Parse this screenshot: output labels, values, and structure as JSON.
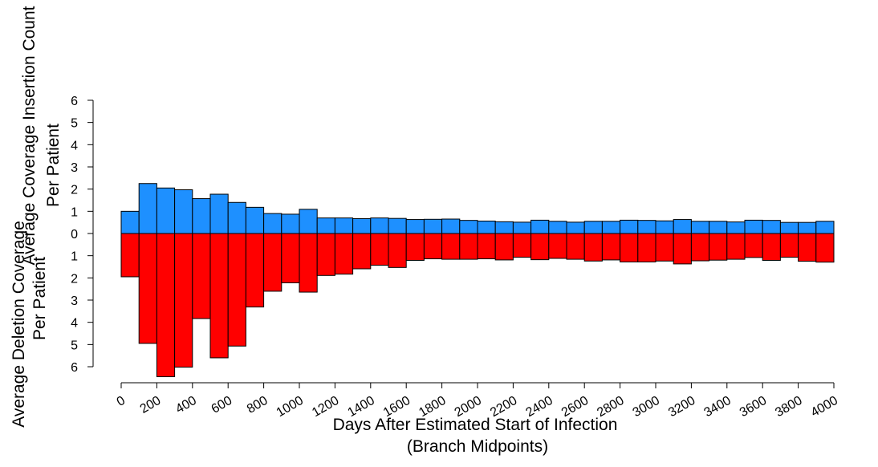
{
  "chart_data": {
    "type": "bar",
    "subtype": "mirrored-histogram",
    "x_bins": {
      "start": 0,
      "width": 100,
      "count": 40
    },
    "series": [
      {
        "name": "Insertion",
        "direction": "up",
        "color": "#1e90ff",
        "values": [
          1.0,
          2.25,
          2.05,
          1.97,
          1.57,
          1.77,
          1.4,
          1.18,
          0.9,
          0.87,
          1.09,
          0.7,
          0.7,
          0.67,
          0.7,
          0.68,
          0.63,
          0.64,
          0.65,
          0.59,
          0.56,
          0.53,
          0.51,
          0.6,
          0.55,
          0.51,
          0.55,
          0.55,
          0.6,
          0.59,
          0.57,
          0.63,
          0.55,
          0.55,
          0.52,
          0.6,
          0.59,
          0.5,
          0.5,
          0.55
        ]
      },
      {
        "name": "Deletion",
        "direction": "down",
        "color": "#ff0000",
        "values": [
          1.95,
          4.95,
          6.45,
          6.02,
          3.83,
          5.6,
          5.07,
          3.31,
          2.6,
          2.22,
          2.64,
          1.89,
          1.83,
          1.59,
          1.43,
          1.53,
          1.21,
          1.14,
          1.16,
          1.16,
          1.14,
          1.19,
          1.07,
          1.18,
          1.12,
          1.16,
          1.24,
          1.19,
          1.28,
          1.28,
          1.24,
          1.37,
          1.23,
          1.2,
          1.16,
          1.08,
          1.21,
          1.07,
          1.25,
          1.29
        ]
      }
    ],
    "x_ticks": [
      "0",
      "200",
      "400",
      "600",
      "800",
      "1000",
      "1200",
      "1400",
      "1600",
      "1800",
      "2000",
      "2200",
      "2400",
      "2600",
      "2800",
      "3000",
      "3200",
      "3400",
      "3600",
      "3800",
      "4000"
    ],
    "xlim": [
      0,
      4000
    ],
    "upper_ticks": [
      "0",
      "1",
      "2",
      "3",
      "4",
      "5",
      "6"
    ],
    "lower_ticks": [
      "0",
      "1",
      "2",
      "3",
      "4",
      "5",
      "6"
    ],
    "ylim": [
      -6.5,
      6
    ],
    "xlabel_line1": "Days After Estimated Start of Infection",
    "xlabel_line2": "(Branch Midpoints)",
    "ylabel_upper_line1": "Average Coverage Insertion Count",
    "ylabel_upper_line2": "Per Patient",
    "ylabel_lower_line1": "Average Deletion Coverage",
    "ylabel_lower_line2": "Per Patient",
    "grid": false,
    "legend": "none"
  }
}
